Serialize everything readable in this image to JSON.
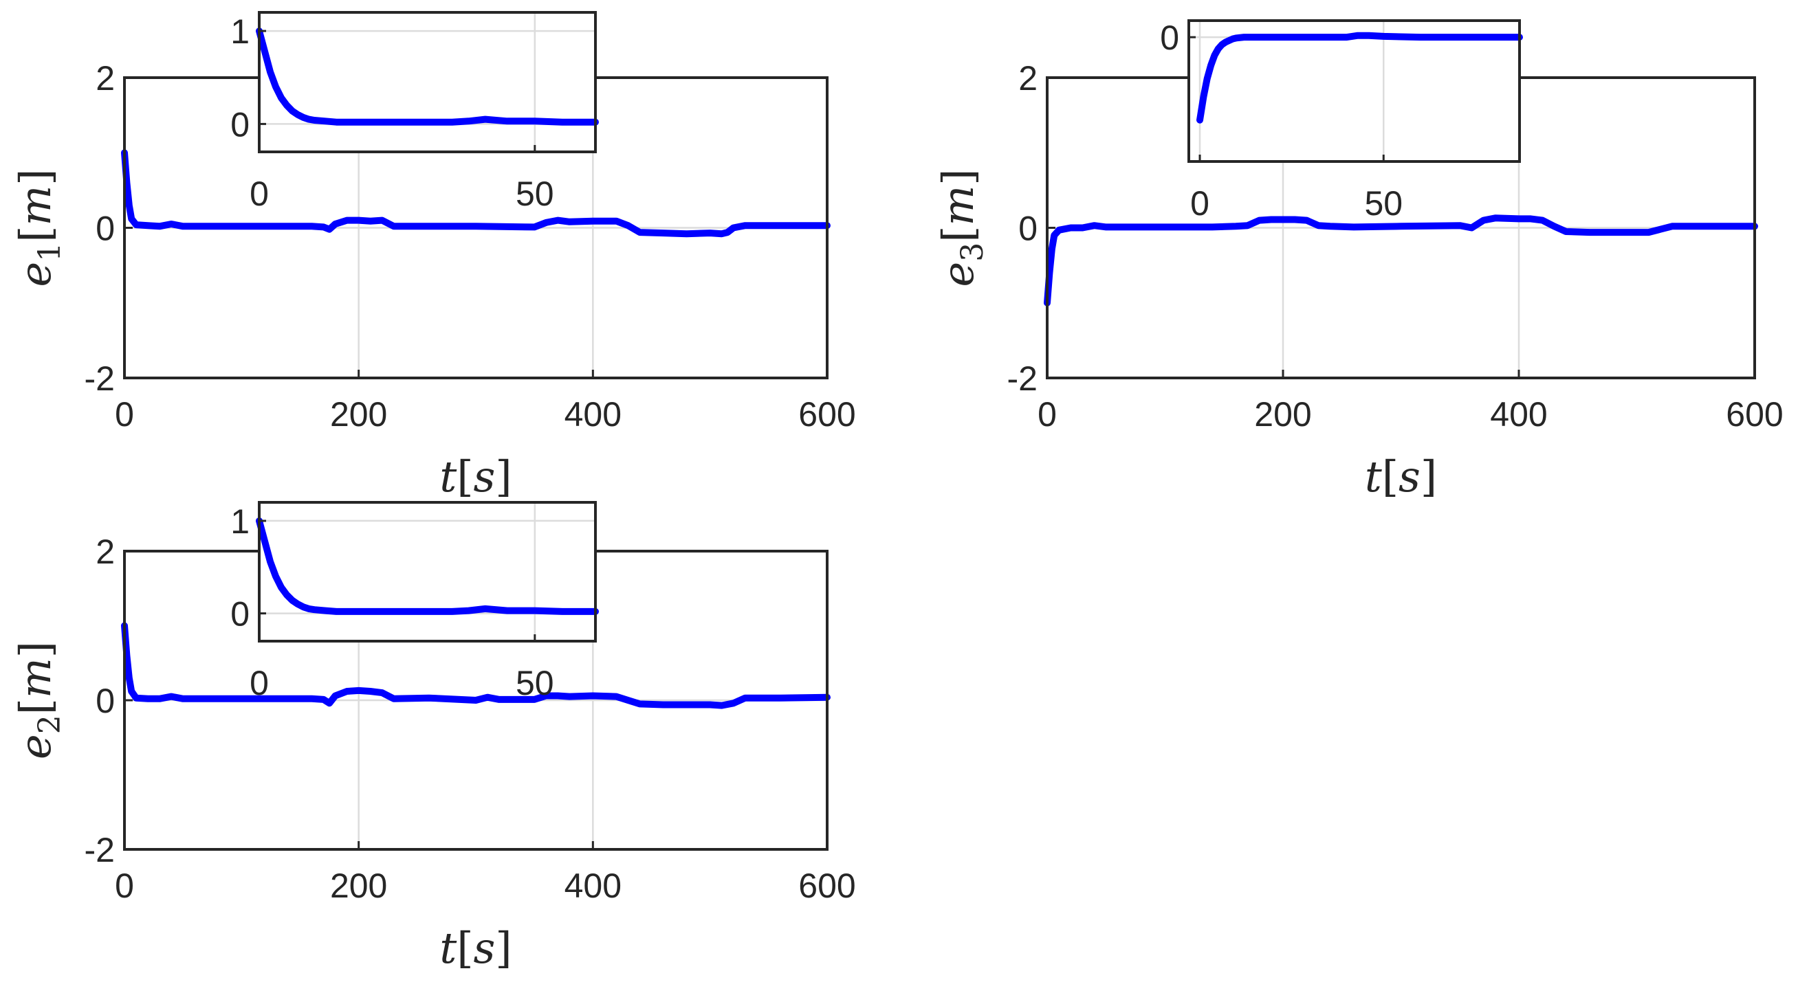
{
  "colors": {
    "series": "#0000FF",
    "axis": "#262626",
    "grid": "#DCDCDC"
  },
  "chart_data": [
    {
      "id": "e1",
      "type": "line",
      "ylabel_var": "e",
      "ylabel_sub": "1",
      "ylabel_unit": "m",
      "xlabel_var": "t",
      "xlabel_unit": "s",
      "xlim": [
        0,
        600
      ],
      "ylim": [
        -2,
        2
      ],
      "xticks": [
        0,
        200,
        400,
        600
      ],
      "yticks": [
        -2,
        0,
        2
      ],
      "xtick_labels": [
        "0",
        "200",
        "400",
        "600"
      ],
      "ytick_labels": [
        "-2",
        "0",
        "2"
      ],
      "grid": true,
      "series": [
        {
          "x": [
            0,
            2,
            4,
            6,
            10,
            20,
            30,
            40,
            50,
            60,
            80,
            100,
            120,
            140,
            160,
            170,
            175,
            180,
            190,
            200,
            210,
            220,
            230,
            260,
            300,
            350,
            360,
            370,
            380,
            400,
            420,
            430,
            440,
            460,
            480,
            500,
            510,
            515,
            520,
            530,
            560,
            600
          ],
          "y": [
            1.0,
            0.6,
            0.3,
            0.12,
            0.04,
            0.03,
            0.02,
            0.05,
            0.02,
            0.02,
            0.02,
            0.02,
            0.02,
            0.02,
            0.02,
            0.01,
            -0.02,
            0.05,
            0.1,
            0.1,
            0.09,
            0.1,
            0.02,
            0.02,
            0.02,
            0.01,
            0.07,
            0.1,
            0.08,
            0.09,
            0.09,
            0.03,
            -0.06,
            -0.07,
            -0.08,
            -0.07,
            -0.08,
            -0.06,
            0.0,
            0.03,
            0.03,
            0.03
          ]
        }
      ],
      "inset": {
        "xlim": [
          0,
          61
        ],
        "ylim": [
          -0.3,
          1.2
        ],
        "xticks": [
          0,
          50
        ],
        "yticks": [
          0,
          1
        ],
        "xtick_labels": [
          "0",
          "50"
        ],
        "ytick_labels": [
          "0",
          "1"
        ],
        "series": [
          {
            "x": [
              0,
              1,
              2,
              3,
              4,
              5,
              6,
              7,
              8,
              9,
              10,
              12,
              14,
              16,
              20,
              25,
              30,
              35,
              38,
              41,
              45,
              50,
              55,
              61
            ],
            "y": [
              1.0,
              0.78,
              0.56,
              0.4,
              0.28,
              0.2,
              0.14,
              0.1,
              0.07,
              0.05,
              0.04,
              0.03,
              0.02,
              0.02,
              0.02,
              0.02,
              0.02,
              0.02,
              0.03,
              0.05,
              0.03,
              0.03,
              0.02,
              0.02
            ]
          }
        ]
      }
    },
    {
      "id": "e3",
      "type": "line",
      "ylabel_var": "e",
      "ylabel_sub": "3",
      "ylabel_unit": "m",
      "xlabel_var": "t",
      "xlabel_unit": "s",
      "xlim": [
        0,
        600
      ],
      "ylim": [
        -2,
        2
      ],
      "xticks": [
        0,
        200,
        400,
        600
      ],
      "yticks": [
        -2,
        0,
        2
      ],
      "xtick_labels": [
        "0",
        "200",
        "400",
        "600"
      ],
      "ytick_labels": [
        "-2",
        "0",
        "2"
      ],
      "grid": true,
      "series": [
        {
          "x": [
            0,
            2,
            4,
            6,
            10,
            20,
            30,
            40,
            50,
            60,
            80,
            100,
            120,
            140,
            160,
            170,
            180,
            190,
            200,
            210,
            220,
            230,
            240,
            260,
            300,
            350,
            360,
            370,
            380,
            400,
            410,
            420,
            430,
            440,
            460,
            500,
            510,
            520,
            530,
            560,
            600
          ],
          "y": [
            -1.0,
            -0.6,
            -0.28,
            -0.1,
            -0.03,
            0.0,
            0.0,
            0.03,
            0.01,
            0.01,
            0.01,
            0.01,
            0.01,
            0.01,
            0.02,
            0.03,
            0.1,
            0.11,
            0.11,
            0.11,
            0.1,
            0.03,
            0.02,
            0.01,
            0.02,
            0.03,
            0.0,
            0.1,
            0.13,
            0.12,
            0.12,
            0.1,
            0.02,
            -0.05,
            -0.06,
            -0.06,
            -0.06,
            -0.02,
            0.02,
            0.02,
            0.02
          ]
        }
      ],
      "inset": {
        "xlim": [
          -3,
          87
        ],
        "ylim": [
          -1.5,
          0.2
        ],
        "xticks": [
          0,
          50
        ],
        "yticks": [
          0
        ],
        "xtick_labels": [
          "0",
          "50"
        ],
        "ytick_labels": [
          "0"
        ],
        "series": [
          {
            "x": [
              0,
              1,
              2,
              3,
              4,
              5,
              6,
              7,
              8,
              9,
              10,
              12,
              15,
              20,
              30,
              40,
              43,
              46,
              50,
              60,
              87
            ],
            "y": [
              -1.0,
              -0.72,
              -0.5,
              -0.34,
              -0.22,
              -0.14,
              -0.09,
              -0.06,
              -0.04,
              -0.02,
              -0.01,
              0.0,
              0.0,
              0.0,
              0.0,
              0.0,
              0.02,
              0.02,
              0.01,
              0.0,
              0.0
            ]
          }
        ]
      }
    },
    {
      "id": "e2",
      "type": "line",
      "ylabel_var": "e",
      "ylabel_sub": "2",
      "ylabel_unit": "m",
      "xlabel_var": "t",
      "xlabel_unit": "s",
      "xlim": [
        0,
        600
      ],
      "ylim": [
        -2,
        2
      ],
      "xticks": [
        0,
        200,
        400,
        600
      ],
      "yticks": [
        -2,
        0,
        2
      ],
      "xtick_labels": [
        "0",
        "200",
        "400",
        "600"
      ],
      "ytick_labels": [
        "-2",
        "0",
        "2"
      ],
      "grid": true,
      "series": [
        {
          "x": [
            0,
            2,
            4,
            6,
            10,
            20,
            30,
            40,
            50,
            60,
            80,
            100,
            120,
            140,
            160,
            170,
            175,
            180,
            190,
            200,
            210,
            220,
            230,
            260,
            300,
            310,
            320,
            350,
            360,
            370,
            380,
            400,
            420,
            430,
            440,
            460,
            500,
            510,
            520,
            530,
            560,
            600
          ],
          "y": [
            1.0,
            0.6,
            0.3,
            0.12,
            0.03,
            0.02,
            0.02,
            0.05,
            0.02,
            0.02,
            0.02,
            0.02,
            0.02,
            0.02,
            0.02,
            0.01,
            -0.04,
            0.06,
            0.12,
            0.13,
            0.12,
            0.1,
            0.02,
            0.03,
            0.0,
            0.04,
            0.01,
            0.01,
            0.06,
            0.06,
            0.05,
            0.06,
            0.05,
            0.0,
            -0.05,
            -0.06,
            -0.06,
            -0.07,
            -0.04,
            0.03,
            0.03,
            0.04
          ]
        }
      ],
      "inset": {
        "xlim": [
          0,
          61
        ],
        "ylim": [
          -0.3,
          1.2
        ],
        "xticks": [
          0,
          50
        ],
        "yticks": [
          0,
          1
        ],
        "xtick_labels": [
          "0",
          "50"
        ],
        "ytick_labels": [
          "0",
          "1"
        ],
        "series": [
          {
            "x": [
              0,
              1,
              2,
              3,
              4,
              5,
              6,
              7,
              8,
              9,
              10,
              12,
              14,
              16,
              20,
              25,
              30,
              35,
              38,
              41,
              45,
              50,
              55,
              61
            ],
            "y": [
              1.0,
              0.78,
              0.56,
              0.4,
              0.28,
              0.2,
              0.14,
              0.1,
              0.07,
              0.05,
              0.04,
              0.03,
              0.02,
              0.02,
              0.02,
              0.02,
              0.02,
              0.02,
              0.03,
              0.05,
              0.03,
              0.03,
              0.02,
              0.02
            ]
          }
        ]
      }
    }
  ]
}
